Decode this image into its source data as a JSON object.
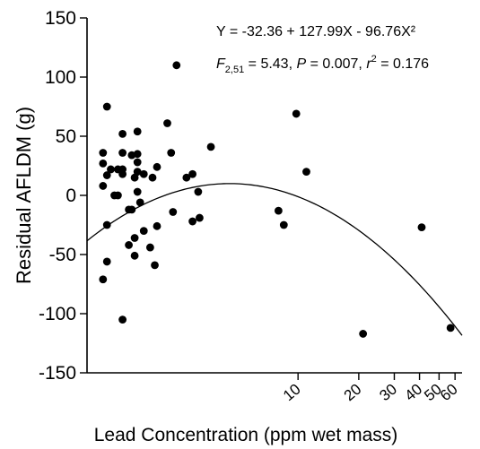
{
  "chart_data": {
    "type": "scatter",
    "title": "",
    "xlabel": "Lead Concentration (ppm wet mass)",
    "ylabel": "Residual AFLDM (g)",
    "xscale": "log",
    "xlim": [
      0.9,
      65
    ],
    "ylim": [
      -150,
      150
    ],
    "yticks": [
      -150,
      -100,
      -50,
      0,
      50,
      100,
      150
    ],
    "xticks": [
      10,
      20,
      30,
      40,
      50,
      60
    ],
    "xtick_labels": [
      "10",
      "20",
      "30",
      "40",
      "50",
      "60"
    ],
    "grid": false,
    "annotations": {
      "equation": "Y = -32.36 + 127.99X - 96.76X²",
      "stat_F": "F",
      "stat_df": "2,51",
      "stat_rest_1": " = 5.43, ",
      "stat_P": "P",
      "stat_rest_2": " = 0.007, ",
      "stat_r": "r",
      "stat_sup": "2",
      "stat_rest_3": " = 0.176"
    },
    "fit": {
      "a": -32.36,
      "b": 127.99,
      "c": -96.76,
      "x_var": "log10(x)"
    },
    "points": [
      {
        "x": 1.08,
        "y": -71
      },
      {
        "x": 1.08,
        "y": 8
      },
      {
        "x": 1.08,
        "y": 27
      },
      {
        "x": 1.08,
        "y": 36
      },
      {
        "x": 1.13,
        "y": -56
      },
      {
        "x": 1.13,
        "y": -25
      },
      {
        "x": 1.13,
        "y": 17
      },
      {
        "x": 1.13,
        "y": 75
      },
      {
        "x": 1.18,
        "y": 22
      },
      {
        "x": 1.23,
        "y": 0
      },
      {
        "x": 1.28,
        "y": 0
      },
      {
        "x": 1.28,
        "y": 22
      },
      {
        "x": 1.35,
        "y": -105
      },
      {
        "x": 1.35,
        "y": 18
      },
      {
        "x": 1.35,
        "y": 22
      },
      {
        "x": 1.35,
        "y": 36
      },
      {
        "x": 1.35,
        "y": 52
      },
      {
        "x": 1.45,
        "y": -12
      },
      {
        "x": 1.45,
        "y": -42
      },
      {
        "x": 1.5,
        "y": 34
      },
      {
        "x": 1.5,
        "y": -12
      },
      {
        "x": 1.55,
        "y": -36
      },
      {
        "x": 1.55,
        "y": -51
      },
      {
        "x": 1.55,
        "y": 15
      },
      {
        "x": 1.6,
        "y": 3
      },
      {
        "x": 1.6,
        "y": 20
      },
      {
        "x": 1.6,
        "y": 28
      },
      {
        "x": 1.6,
        "y": 35
      },
      {
        "x": 1.6,
        "y": 54
      },
      {
        "x": 1.65,
        "y": -6
      },
      {
        "x": 1.72,
        "y": -30
      },
      {
        "x": 1.72,
        "y": 18
      },
      {
        "x": 1.85,
        "y": -44
      },
      {
        "x": 1.9,
        "y": 15
      },
      {
        "x": 1.95,
        "y": -59
      },
      {
        "x": 2.0,
        "y": 24
      },
      {
        "x": 2.0,
        "y": -26
      },
      {
        "x": 2.25,
        "y": 61
      },
      {
        "x": 2.35,
        "y": 36
      },
      {
        "x": 2.4,
        "y": -14
      },
      {
        "x": 2.5,
        "y": 110
      },
      {
        "x": 2.8,
        "y": 15
      },
      {
        "x": 3.0,
        "y": 18
      },
      {
        "x": 3.0,
        "y": -22
      },
      {
        "x": 3.2,
        "y": 3
      },
      {
        "x": 3.25,
        "y": -19
      },
      {
        "x": 3.7,
        "y": 41
      },
      {
        "x": 8.0,
        "y": -13
      },
      {
        "x": 8.5,
        "y": -25
      },
      {
        "x": 9.8,
        "y": 69
      },
      {
        "x": 11.0,
        "y": 20
      },
      {
        "x": 21.0,
        "y": -117
      },
      {
        "x": 41.0,
        "y": -27
      },
      {
        "x": 57.0,
        "y": -112
      }
    ]
  }
}
